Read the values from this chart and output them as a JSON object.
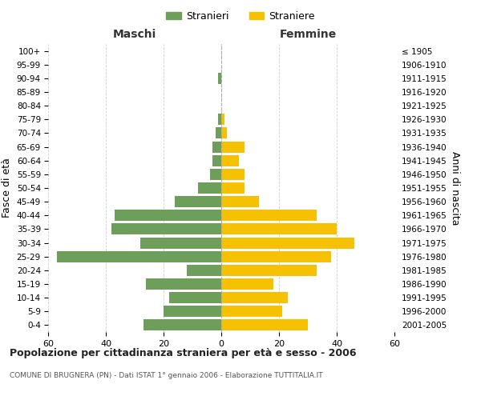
{
  "age_groups": [
    "0-4",
    "5-9",
    "10-14",
    "15-19",
    "20-24",
    "25-29",
    "30-34",
    "35-39",
    "40-44",
    "45-49",
    "50-54",
    "55-59",
    "60-64",
    "65-69",
    "70-74",
    "75-79",
    "80-84",
    "85-89",
    "90-94",
    "95-99",
    "100+"
  ],
  "birth_years": [
    "2001-2005",
    "1996-2000",
    "1991-1995",
    "1986-1990",
    "1981-1985",
    "1976-1980",
    "1971-1975",
    "1966-1970",
    "1961-1965",
    "1956-1960",
    "1951-1955",
    "1946-1950",
    "1941-1945",
    "1936-1940",
    "1931-1935",
    "1926-1930",
    "1921-1925",
    "1916-1920",
    "1911-1915",
    "1906-1910",
    "≤ 1905"
  ],
  "males": [
    27,
    20,
    18,
    26,
    12,
    57,
    28,
    38,
    37,
    16,
    8,
    4,
    3,
    3,
    2,
    1,
    0,
    0,
    1,
    0,
    0
  ],
  "females": [
    30,
    21,
    23,
    18,
    33,
    38,
    46,
    40,
    33,
    13,
    8,
    8,
    6,
    8,
    2,
    1,
    0,
    0,
    0,
    0,
    0
  ],
  "male_color": "#6d9f5a",
  "female_color": "#f5c100",
  "male_label": "Stranieri",
  "female_label": "Straniere",
  "title": "Popolazione per cittadinanza straniera per età e sesso - 2006",
  "subtitle": "COMUNE DI BRUGNERA (PN) - Dati ISTAT 1° gennaio 2006 - Elaborazione TUTTITALIA.IT",
  "left_header": "Maschi",
  "right_header": "Femmine",
  "left_yaxis_label": "Fasce di età",
  "right_yaxis_label": "Anni di nascita",
  "xlim": 60,
  "background_color": "#ffffff",
  "grid_color": "#cccccc"
}
